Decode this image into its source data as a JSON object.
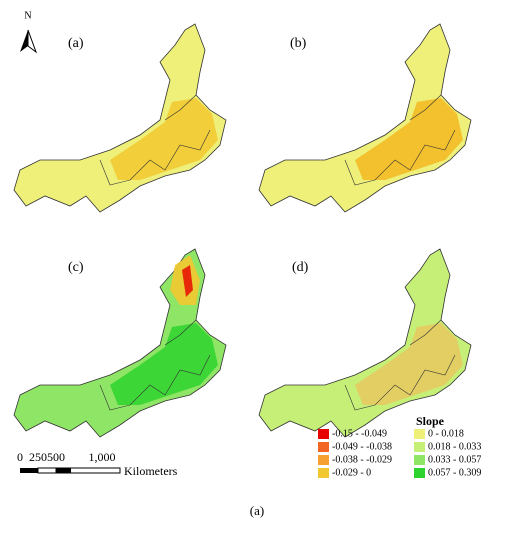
{
  "north": "N",
  "panels": [
    {
      "label": "(a)"
    },
    {
      "label": "(b)"
    },
    {
      "label": "(c)"
    },
    {
      "label": "(d)"
    }
  ],
  "scale_bar": {
    "ticks": [
      "0",
      "250",
      "500",
      "1,000"
    ],
    "unit": "Kilometers"
  },
  "legend": {
    "title": "Slope",
    "items": [
      {
        "label": "-0.15 - -0.049",
        "color": "#e60000"
      },
      {
        "label": "-0.049 - -0.038",
        "color": "#f26522"
      },
      {
        "label": "-0.038 - -0.029",
        "color": "#f5a030"
      },
      {
        "label": "-0.029 - 0",
        "color": "#f2c830"
      },
      {
        "label": "0 - 0.018",
        "color": "#eef07a"
      },
      {
        "label": "0.018 - 0.033",
        "color": "#c6ef78"
      },
      {
        "label": "0.033 - 0.057",
        "color": "#8fe566"
      },
      {
        "label": "0.057 - 0.309",
        "color": "#2fd32f"
      }
    ]
  },
  "caption": "(a)"
}
